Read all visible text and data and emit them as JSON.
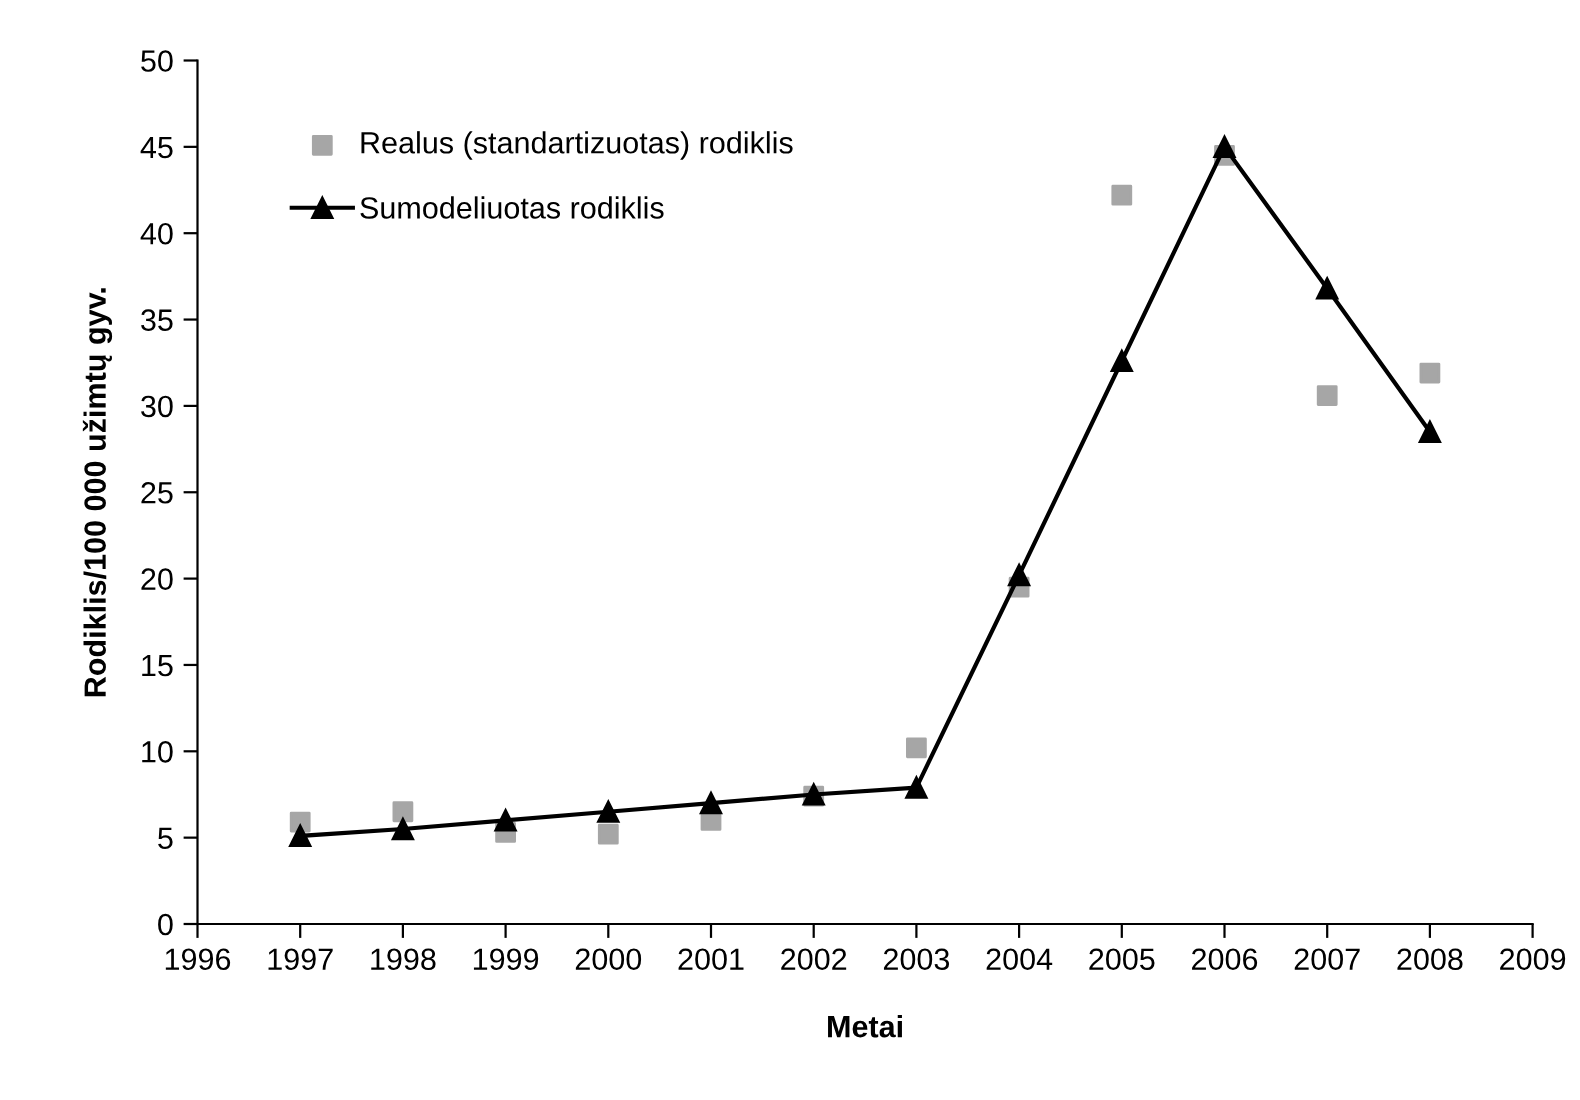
{
  "chart_data": {
    "type": "line",
    "xlabel": "Metai",
    "ylabel": "Rodiklis/100 000 užimtų gyv.",
    "x": [
      1997,
      1998,
      1999,
      2000,
      2001,
      2002,
      2003,
      2004,
      2005,
      2006,
      2007,
      2008
    ],
    "series": [
      {
        "name": "Realus (standartizuotas) rodiklis",
        "type": "scatter",
        "marker": "square",
        "color": "#a6a6a6",
        "values": [
          5.9,
          6.5,
          5.3,
          5.2,
          6.0,
          7.4,
          10.2,
          19.5,
          42.2,
          44.5,
          30.6,
          31.9
        ]
      },
      {
        "name": "Sumodeliuotas rodiklis",
        "marker": "triangle",
        "color": "#000000",
        "values": [
          5.1,
          5.5,
          6.0,
          6.5,
          7.0,
          7.5,
          7.9,
          20.2,
          32.6,
          45.0,
          36.8,
          28.5
        ]
      }
    ],
    "xlim": [
      1996,
      2009
    ],
    "xticks": [
      1996,
      1997,
      1998,
      1999,
      2000,
      2001,
      2002,
      2003,
      2004,
      2005,
      2006,
      2007,
      2008,
      2009
    ],
    "ylim": [
      0,
      50
    ],
    "yticks": [
      0,
      5,
      10,
      15,
      20,
      25,
      30,
      35,
      40,
      45,
      50
    ],
    "grid": false,
    "legend": "top left"
  }
}
